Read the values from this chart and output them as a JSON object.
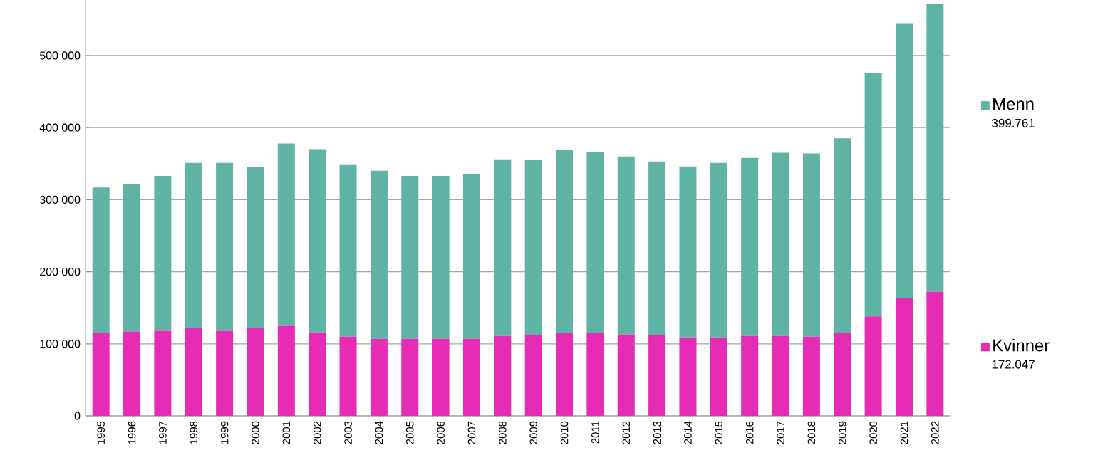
{
  "chart_data": {
    "type": "bar",
    "stacked": true,
    "grid": "y",
    "legend": "right",
    "categories": [
      "1995",
      "1996",
      "1997",
      "1998",
      "1999",
      "2000",
      "2001",
      "2002",
      "2003",
      "2004",
      "2005",
      "2006",
      "2007",
      "2008",
      "2009",
      "2010",
      "2011",
      "2012",
      "2013",
      "2014",
      "2015",
      "2016",
      "2017",
      "2018",
      "2019",
      "2020",
      "2021",
      "2022"
    ],
    "series": [
      {
        "name": "Kvinner",
        "color": "#e62bb4",
        "values": [
          115000,
          117000,
          118000,
          122000,
          118000,
          122000,
          125000,
          116000,
          110000,
          107000,
          107000,
          107000,
          107000,
          111000,
          112000,
          115000,
          115000,
          113000,
          112000,
          109000,
          109000,
          111000,
          111000,
          110000,
          115000,
          138000,
          163000,
          172047
        ]
      },
      {
        "name": "Menn",
        "color": "#5fb3a5",
        "values": [
          202000,
          205000,
          215000,
          229000,
          233000,
          223000,
          253000,
          254000,
          238000,
          233000,
          226000,
          226000,
          228000,
          245000,
          243000,
          254000,
          251000,
          247000,
          241000,
          237000,
          242000,
          247000,
          254000,
          254000,
          270000,
          338000,
          381000,
          399761
        ]
      }
    ],
    "annotations": [
      "172.047",
      "399.761"
    ],
    "ylim": [
      0,
      577000
    ],
    "yticks": [
      0,
      {
        "value": 100000,
        "label": "100 000"
      },
      {
        "value": 200000,
        "label": "200 000"
      },
      {
        "value": 300000,
        "label": "300 000"
      },
      {
        "value": 400000,
        "label": "400 000"
      },
      {
        "value": 500000,
        "label": "500 000"
      }
    ]
  }
}
